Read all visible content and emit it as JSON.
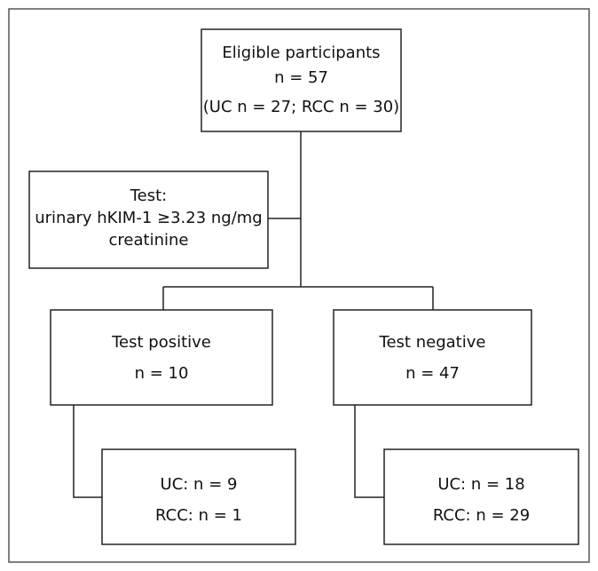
{
  "nodes": [
    {
      "lines": [
        "Eligible participants",
        "n = 57",
        "(UC n = 27; RCC n = 30)"
      ]
    },
    {
      "lines": [
        "Test:",
        "urinary hKIM-1 ≥3.23 ng/mg",
        "creatinine"
      ]
    },
    {
      "lines": [
        "Test positive",
        "n = 10"
      ]
    },
    {
      "lines": [
        "Test negative",
        "n = 47"
      ]
    },
    {
      "lines": [
        "UC: n = 9",
        "RCC: n = 1"
      ]
    },
    {
      "lines": [
        "UC: n = 18",
        "RCC: n = 29"
      ]
    }
  ]
}
